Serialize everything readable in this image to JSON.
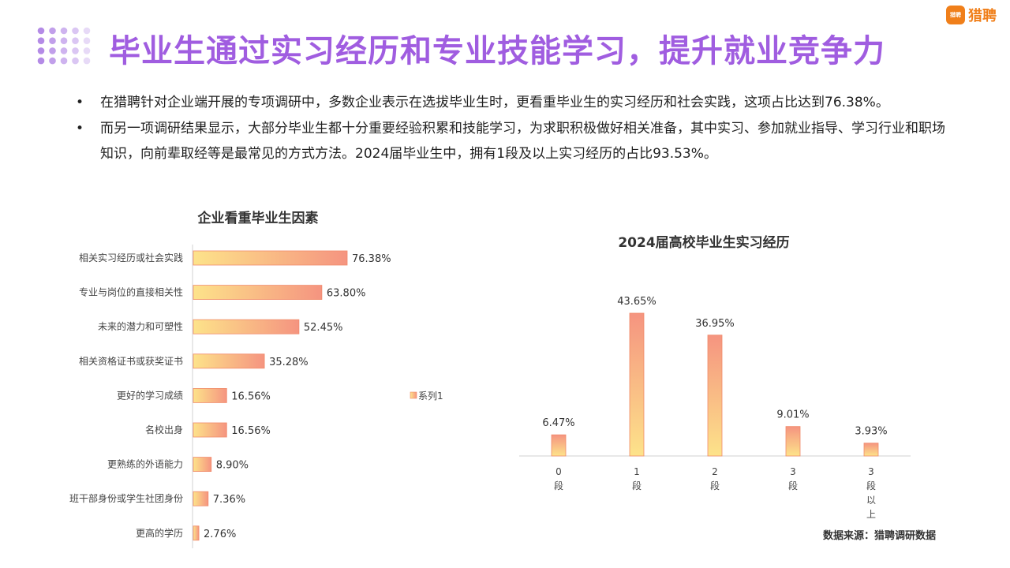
{
  "header": {
    "title": "毕业生通过实习经历和专业技能学习，提升就业竞争力",
    "logo_badge": "猎聘",
    "logo_text": "猎聘"
  },
  "bullets": [
    {
      "marker": "•",
      "text": "在猎聘针对企业端开展的专项调研中，多数企业表示在选拔毕业生时，更看重毕业生的实习经历和社会实践，这项占比达到76.38%。"
    },
    {
      "marker": "•",
      "text": "而另一项调研结果显示，大部分毕业生都十分重要经验积累和技能学习，为求职积极做好相关准备，其中实习、参加就业指导、学习行业和职场知识，向前辈取经等是最常见的方式方法。2024届毕业生中，拥有1段及以上实习经历的占比93.53%。"
    }
  ],
  "chart_data": [
    {
      "type": "bar",
      "orientation": "horizontal",
      "title": "企业看重毕业生因素",
      "categories": [
        "相关实习经历或社会实践",
        "专业与岗位的直接相关性",
        "未来的潜力和可塑性",
        "相关资格证书或获奖证书",
        "更好的学习成绩",
        "名校出身",
        "更熟练的外语能力",
        "班干部身份或学生社团身份",
        "更高的学历"
      ],
      "values": [
        76.38,
        63.8,
        52.45,
        35.28,
        16.56,
        16.56,
        8.9,
        7.36,
        2.76
      ],
      "value_labels": [
        "76.38%",
        "63.80%",
        "52.45%",
        "35.28%",
        "16.56%",
        "16.56%",
        "8.90%",
        "7.36%",
        "2.76%"
      ],
      "series": [
        {
          "name": "系列1",
          "values": [
            76.38,
            63.8,
            52.45,
            35.28,
            16.56,
            16.56,
            8.9,
            7.36,
            2.76
          ]
        }
      ],
      "legend": "right",
      "xlim": [
        0,
        100
      ],
      "grid": false,
      "colors": {
        "bar_start": "#fde38a",
        "bar_end": "#f59480",
        "bar_stroke": "#f08a6a"
      }
    },
    {
      "type": "bar",
      "orientation": "vertical",
      "title": "2024届高校毕业生实习经历",
      "categories": [
        "0段",
        "1段",
        "2段",
        "3段",
        "3段以上"
      ],
      "values": [
        6.47,
        43.65,
        36.95,
        9.01,
        3.93
      ],
      "value_labels": [
        "6.47%",
        "43.65%",
        "36.95%",
        "9.01%",
        "3.93%"
      ],
      "ylim": [
        0,
        50
      ],
      "grid": false,
      "colors": {
        "bar_start": "#f59480",
        "bar_end": "#fde38a",
        "bar_stroke": "#f08a6a"
      }
    }
  ],
  "footer": {
    "source": "数据来源：猎聘调研数据"
  },
  "colors": {
    "title": "#a05de0",
    "brand": "#f07f1a",
    "dots": "#b48be6"
  }
}
